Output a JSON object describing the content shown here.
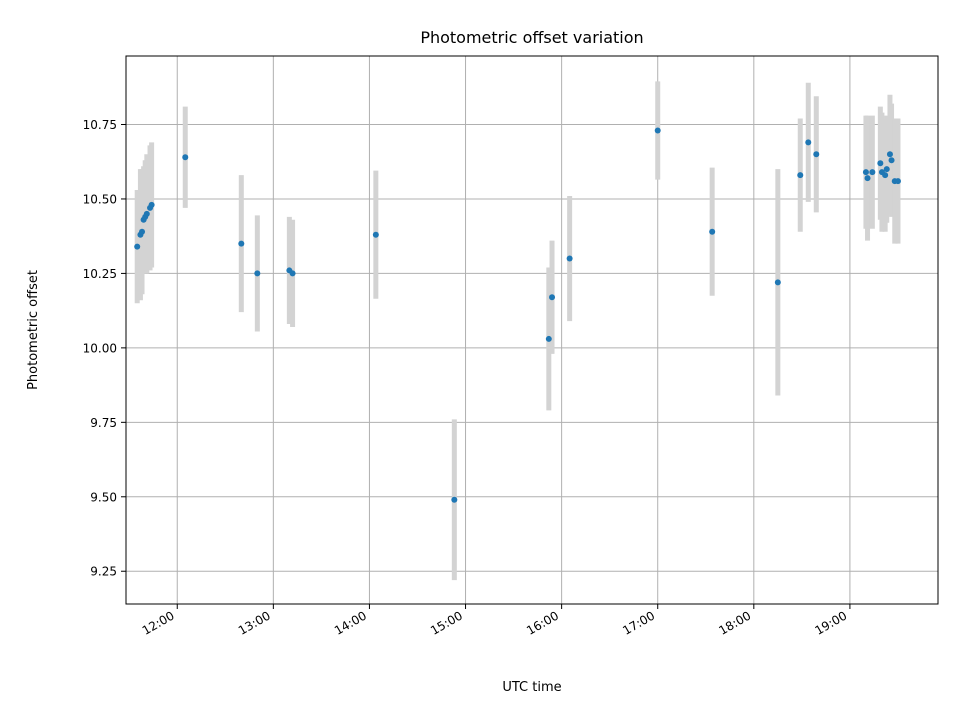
{
  "chart_data": {
    "type": "scatter",
    "title": "Photometric offset variation",
    "xlabel": "UTC time",
    "ylabel": "Photometric offset",
    "grid": true,
    "x_range": [
      "11:28",
      "19:55"
    ],
    "ylim": [
      9.14,
      10.98
    ],
    "x_ticks": [
      "12:00",
      "13:00",
      "14:00",
      "15:00",
      "16:00",
      "17:00",
      "18:00",
      "19:00"
    ],
    "y_ticks": [
      9.25,
      9.5,
      9.75,
      10.0,
      10.25,
      10.5,
      10.75
    ],
    "y_tick_labels": [
      "9.25",
      "9.50",
      "9.75",
      "10.00",
      "10.25",
      "10.50",
      "10.75"
    ],
    "colors": {
      "points": "#1f77b4",
      "errorbars": "#d3d3d3",
      "grid": "#b0b0b0"
    },
    "series": [
      {
        "points": [
          {
            "x": "11:35",
            "y": 10.34,
            "err": 0.19
          },
          {
            "x": "11:37",
            "y": 10.38,
            "err": 0.22
          },
          {
            "x": "11:38",
            "y": 10.39,
            "err": 0.21
          },
          {
            "x": "11:39",
            "y": 10.43,
            "err": 0.18
          },
          {
            "x": "11:40",
            "y": 10.44,
            "err": 0.19
          },
          {
            "x": "11:41",
            "y": 10.45,
            "err": 0.2
          },
          {
            "x": "11:43",
            "y": 10.47,
            "err": 0.21
          },
          {
            "x": "11:44",
            "y": 10.48,
            "err": 0.21
          },
          {
            "x": "12:05",
            "y": 10.64,
            "err": 0.17
          },
          {
            "x": "12:40",
            "y": 10.35,
            "err": 0.23
          },
          {
            "x": "12:50",
            "y": 10.25,
            "err": 0.195
          },
          {
            "x": "13:10",
            "y": 10.26,
            "err": 0.18
          },
          {
            "x": "13:12",
            "y": 10.25,
            "err": 0.18
          },
          {
            "x": "14:04",
            "y": 10.38,
            "err": 0.215
          },
          {
            "x": "14:53",
            "y": 9.49,
            "err": 0.27
          },
          {
            "x": "15:52",
            "y": 10.03,
            "err": 0.24
          },
          {
            "x": "15:54",
            "y": 10.17,
            "err": 0.19
          },
          {
            "x": "16:05",
            "y": 10.3,
            "err": 0.21
          },
          {
            "x": "17:00",
            "y": 10.73,
            "err": 0.165
          },
          {
            "x": "17:34",
            "y": 10.39,
            "err": 0.215
          },
          {
            "x": "18:15",
            "y": 10.22,
            "err": 0.38
          },
          {
            "x": "18:29",
            "y": 10.58,
            "err": 0.19
          },
          {
            "x": "18:34",
            "y": 10.69,
            "err": 0.2
          },
          {
            "x": "18:39",
            "y": 10.65,
            "err": 0.195
          },
          {
            "x": "19:10",
            "y": 10.59,
            "err": 0.19
          },
          {
            "x": "19:11",
            "y": 10.57,
            "err": 0.21
          },
          {
            "x": "19:14",
            "y": 10.59,
            "err": 0.19
          },
          {
            "x": "19:19",
            "y": 10.62,
            "err": 0.19
          },
          {
            "x": "19:20",
            "y": 10.59,
            "err": 0.2
          },
          {
            "x": "19:22",
            "y": 10.58,
            "err": 0.19
          },
          {
            "x": "19:23",
            "y": 10.6,
            "err": 0.18
          },
          {
            "x": "19:25",
            "y": 10.65,
            "err": 0.2
          },
          {
            "x": "19:26",
            "y": 10.63,
            "err": 0.19
          },
          {
            "x": "19:28",
            "y": 10.56,
            "err": 0.21
          },
          {
            "x": "19:30",
            "y": 10.56,
            "err": 0.21
          }
        ]
      }
    ]
  }
}
